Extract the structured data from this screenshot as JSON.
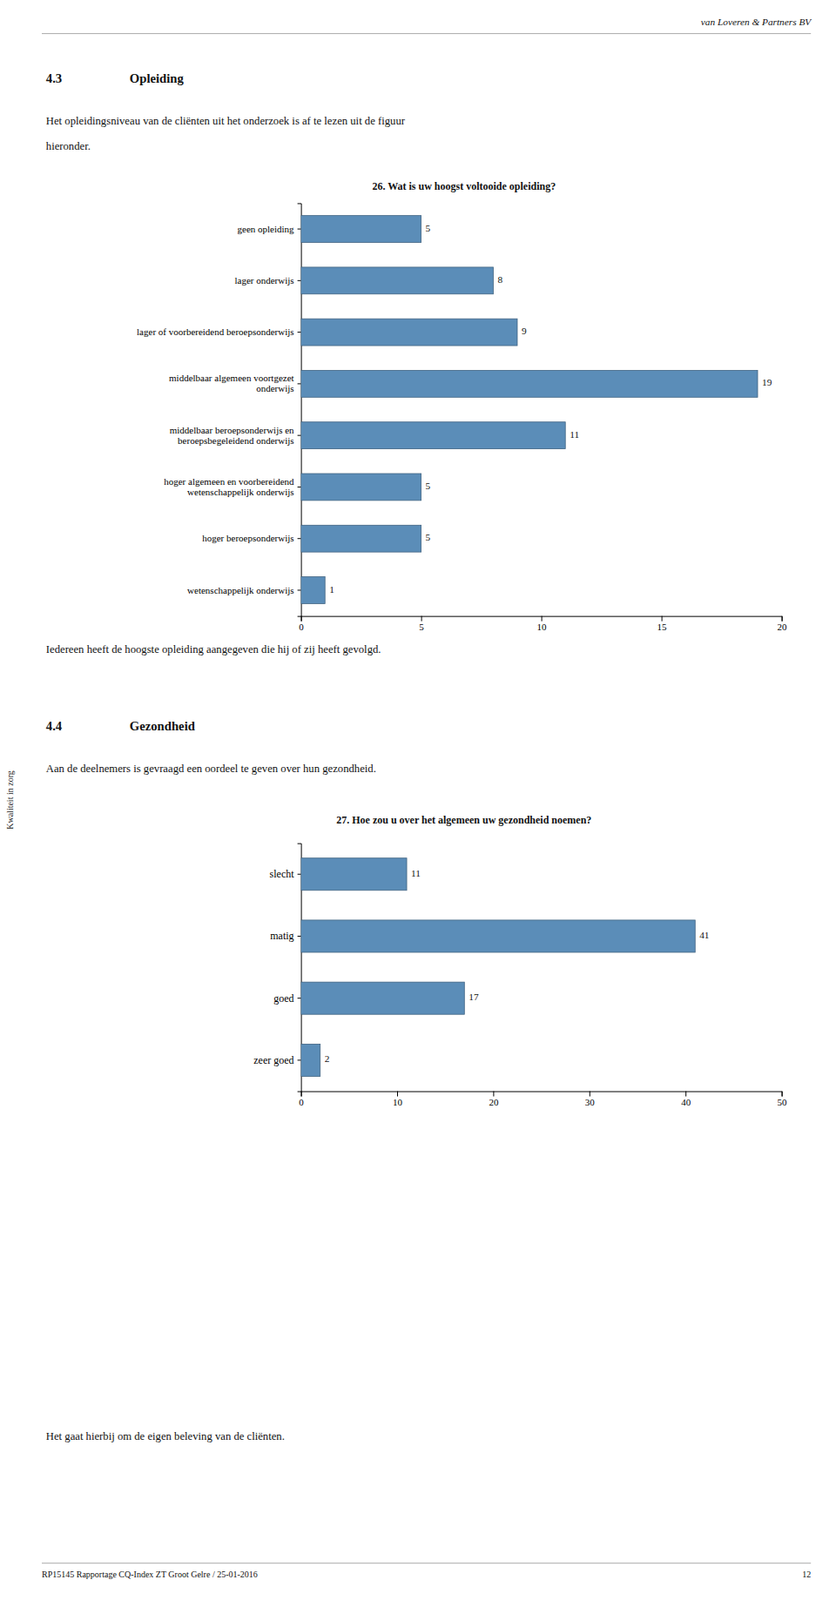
{
  "header_text": "van Loveren & Partners BV",
  "footer_text": "RP15145 Rapportage CQ-Index ZT Groot Gelre / 25-01-2016",
  "footer_right": "12",
  "side_text": "Kwaliteit in zorg",
  "section_title_num": "4.3",
  "section_title": "Opleiding",
  "section_text1": "Het opleidingsniveau van de cliënten uit het onderzoek is af te lezen uit de figuur",
  "section_text2": "hieronder.",
  "note1_text": "Iedereen heeft de hoogste opleiding aangegeven die hij of zij heeft gevolgd.",
  "section2_title_num": "4.4",
  "section2_title": "Gezondheid",
  "section2_text": "Aan de deelnemers is gevraagd een oordeel te geven over hun gezondheid.",
  "note2_text": "Het gaat hierbij om de eigen beleving van de cliënten.",
  "chart_data": [
    {
      "type": "bar",
      "orientation": "horizontal",
      "title": "26. Wat is uw hoogst voltooide opleiding?",
      "categories": [
        "wetenschappelijk onderwijs",
        "hoger beroepsonderwijs",
        "hoger algemeen en voorbereidend\nwetenschappelijk onderwijs",
        "middelbaar beroepsonderwijs en\nberoepsbegeleidend onderwijs",
        "middelbaar algemeen voortgezet\nonderwijs",
        "lager of voorbereidend beroepsonderwijs",
        "lager onderwijs",
        "geen opleiding"
      ],
      "values": [
        1,
        5,
        5,
        11,
        19,
        9,
        8,
        5
      ],
      "color": "#5b8db8",
      "xlim": [
        0,
        20
      ],
      "xticks": [
        0,
        5,
        10,
        15,
        20
      ],
      "data_labels": true,
      "grid": false
    },
    {
      "type": "bar",
      "orientation": "horizontal",
      "title": "27. Hoe zou u over het algemeen uw gezondheid noemen?",
      "categories": [
        "zeer goed",
        "goed",
        "matig",
        "slecht"
      ],
      "values": [
        2,
        17,
        41,
        11
      ],
      "color": "#5b8db8",
      "xlim": [
        0,
        50
      ],
      "xticks": [
        0,
        10,
        20,
        30,
        40,
        50
      ],
      "data_labels": true,
      "grid": false
    }
  ]
}
